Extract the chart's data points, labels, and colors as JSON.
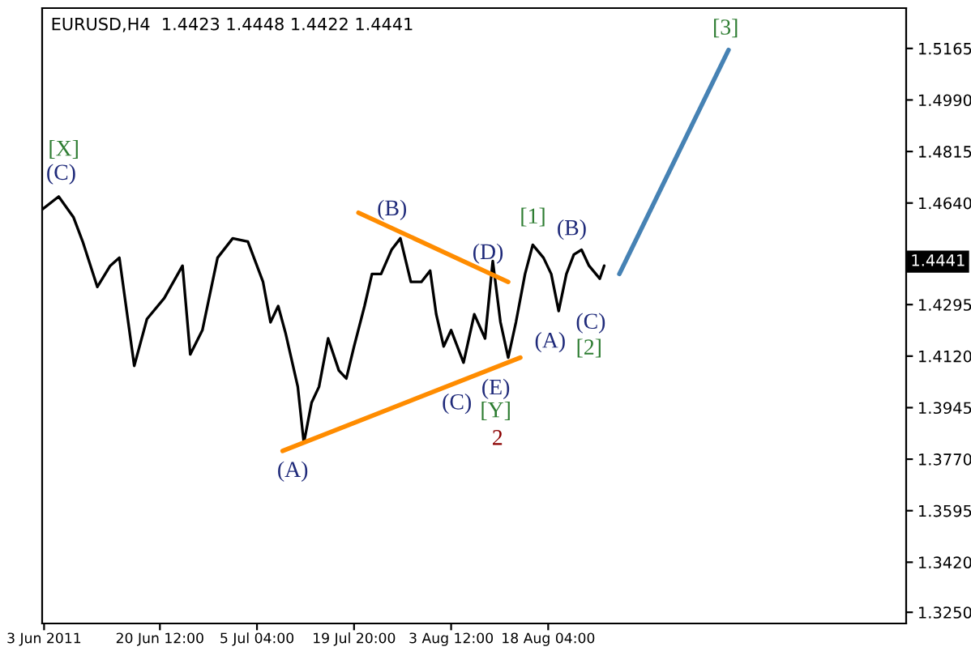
{
  "chart_data": {
    "type": "line",
    "title": "EURUSD,H4  1.4423 1.4448 1.4422 1.4441",
    "series": [
      {
        "color": "#000000",
        "x": [
          "2011-06-02T17:00",
          "2011-06-05T05:00",
          "2011-06-07T11:00",
          "2011-06-08T20:00",
          "2011-06-11T01:00",
          "2011-06-13T00:00",
          "2011-06-14T09:00",
          "2011-06-16T15:00",
          "2011-06-18T13:00",
          "2011-06-21T04:00",
          "2011-06-23T22:00",
          "2011-06-25T02:00",
          "2011-06-26T22:00",
          "2011-06-29T05:00",
          "2011-07-01T12:00",
          "2011-07-03T19:00",
          "2011-07-06T02:00",
          "2011-07-07T05:00",
          "2011-07-08T09:00",
          "2011-07-09T12:00",
          "2011-07-11T08:00",
          "2011-07-12T06:00",
          "2011-07-13T10:00",
          "2011-07-14T13:00",
          "2011-07-15T22:00",
          "2011-07-17T13:00",
          "2011-07-18T16:00",
          "2011-07-19T20:00",
          "2011-07-21T10:00",
          "2011-07-22T13:00",
          "2011-07-23T22:00",
          "2011-07-25T12:00",
          "2011-07-26T20:00",
          "2011-07-28T10:00",
          "2011-07-30T00:00",
          "2011-07-31T08:00",
          "2011-08-01T06:00",
          "2011-08-02T09:00",
          "2011-08-03T12:00",
          "2011-08-05T09:00",
          "2011-08-07T00:00",
          "2011-08-08T15:00",
          "2011-08-09T19:00",
          "2011-08-10T23:00",
          "2011-08-12T03:00",
          "2011-08-13T07:00",
          "2011-08-14T16:00",
          "2011-08-15T20:00",
          "2011-08-17T11:00",
          "2011-08-18T15:00",
          "2011-08-19T18:00",
          "2011-08-20T22:00",
          "2011-08-22T01:00",
          "2011-08-23T05:00",
          "2011-08-24T08:00",
          "2011-08-25T23:00",
          "2011-08-26T15:00"
        ],
        "values": [
          1.4618,
          1.4662,
          1.4591,
          1.4509,
          1.4355,
          1.4427,
          1.4454,
          1.4087,
          1.4246,
          1.4317,
          1.4427,
          1.4126,
          1.4208,
          1.4454,
          1.452,
          1.4509,
          1.4372,
          1.4235,
          1.429,
          1.4197,
          1.4016,
          1.3825,
          1.3962,
          1.4016,
          1.418,
          1.4071,
          1.4044,
          1.4153,
          1.429,
          1.4399,
          1.4399,
          1.4481,
          1.452,
          1.4372,
          1.4372,
          1.441,
          1.4262,
          1.4153,
          1.4208,
          1.4098,
          1.4262,
          1.418,
          1.4443,
          1.4235,
          1.4115,
          1.4235,
          1.4399,
          1.4498,
          1.4454,
          1.4399,
          1.4273,
          1.4399,
          1.4465,
          1.4481,
          1.4427,
          1.4383,
          1.4427
        ]
      },
      {
        "color": "#ff8c00",
        "x": [
          "2011-07-20T12:00",
          "2011-08-12T03:00"
        ],
        "values": [
          1.4607,
          1.4372
        ]
      },
      {
        "color": "#ff8c00",
        "x": [
          "2011-07-09T01:00",
          "2011-08-13T23:00"
        ],
        "values": [
          1.3798,
          1.4115
        ]
      },
      {
        "color": "#4682b4",
        "x": [
          "2011-08-28T22:00",
          "2011-09-14T10:00"
        ],
        "values": [
          1.4399,
          1.516
        ]
      }
    ],
    "xlim": [
      "2011-06-02T17:00",
      "2011-10-11T06:00"
    ],
    "xticks": [
      {
        "value": "2011-06-03T00:00",
        "label": "3 Jun 2011"
      },
      {
        "value": "2011-06-20T12:00",
        "label": "20 Jun 12:00"
      },
      {
        "value": "2011-07-05T04:00",
        "label": "5 Jul 04:00"
      },
      {
        "value": "2011-07-19T20:00",
        "label": "19 Jul 20:00"
      },
      {
        "value": "2011-08-03T12:00",
        "label": "3 Aug 12:00"
      },
      {
        "value": "2011-08-18T04:00",
        "label": "18 Aug 04:00"
      }
    ],
    "ylim": [
      1.3212,
      1.5302
    ],
    "yticks": [
      {
        "value": 1.325,
        "label": "1.3250"
      },
      {
        "value": 1.342,
        "label": "1.3420"
      },
      {
        "value": 1.3595,
        "label": "1.3595"
      },
      {
        "value": 1.377,
        "label": "1.3770"
      },
      {
        "value": 1.3945,
        "label": "1.3945"
      },
      {
        "value": 1.412,
        "label": "1.4120"
      },
      {
        "value": 1.4295,
        "label": "1.4295"
      },
      {
        "value": 1.464,
        "label": "1.4640"
      },
      {
        "value": 1.4815,
        "label": "1.4815"
      },
      {
        "value": 1.499,
        "label": "1.4990"
      },
      {
        "value": 1.5165,
        "label": "1.5165"
      }
    ],
    "annotations": [
      "[X]",
      "(C)",
      "(B)",
      "(D)",
      "[1]",
      "(B)",
      "(A)",
      "(C)",
      "(E)",
      "[Y]",
      "2",
      "(A)",
      "(C)",
      "[2]",
      "[3]",
      "1.4441"
    ],
    "grid": false,
    "legend": false
  }
}
